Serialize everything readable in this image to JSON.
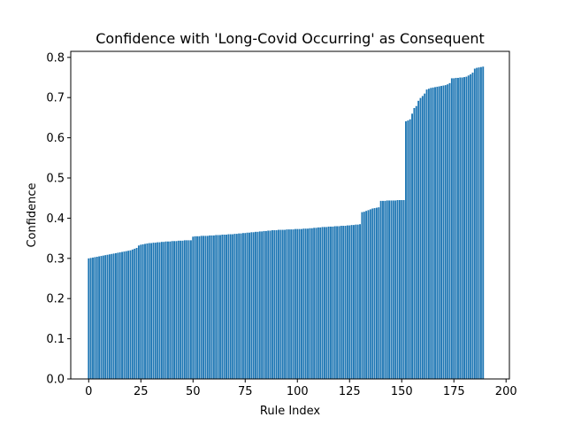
{
  "chart_data": {
    "type": "bar",
    "title": "Confidence with 'Long-Covid Occurring' as Consequent",
    "xlabel": "Rule Index",
    "ylabel": "Confidence",
    "xlim": [
      -8.6,
      201.6
    ],
    "ylim": [
      0,
      0.815
    ],
    "xticks": [
      0,
      25,
      50,
      75,
      100,
      125,
      150,
      175,
      200
    ],
    "yticks": [
      0.0,
      0.1,
      0.2,
      0.3,
      0.4,
      0.5,
      0.6,
      0.7,
      0.8
    ],
    "xtick_labels": [
      "0",
      "25",
      "50",
      "75",
      "100",
      "125",
      "150",
      "175",
      "200"
    ],
    "ytick_labels": [
      "0.0",
      "0.1",
      "0.2",
      "0.3",
      "0.4",
      "0.5",
      "0.6",
      "0.7",
      "0.8"
    ],
    "grid": false,
    "legend": "none",
    "bar_color": "#1f77b4",
    "values": [
      0.3,
      0.301,
      0.302,
      0.303,
      0.304,
      0.305,
      0.306,
      0.307,
      0.308,
      0.309,
      0.31,
      0.311,
      0.312,
      0.313,
      0.314,
      0.315,
      0.316,
      0.317,
      0.318,
      0.319,
      0.32,
      0.322,
      0.324,
      0.326,
      0.332,
      0.334,
      0.335,
      0.336,
      0.337,
      0.338,
      0.338,
      0.339,
      0.339,
      0.34,
      0.34,
      0.341,
      0.341,
      0.342,
      0.342,
      0.342,
      0.343,
      0.343,
      0.343,
      0.344,
      0.344,
      0.344,
      0.345,
      0.345,
      0.345,
      0.345,
      0.354,
      0.355,
      0.355,
      0.355,
      0.356,
      0.356,
      0.356,
      0.356,
      0.357,
      0.357,
      0.357,
      0.358,
      0.358,
      0.358,
      0.359,
      0.359,
      0.359,
      0.36,
      0.36,
      0.36,
      0.361,
      0.361,
      0.362,
      0.362,
      0.363,
      0.363,
      0.364,
      0.364,
      0.365,
      0.365,
      0.366,
      0.366,
      0.367,
      0.367,
      0.368,
      0.368,
      0.369,
      0.369,
      0.37,
      0.37,
      0.37,
      0.371,
      0.371,
      0.371,
      0.371,
      0.372,
      0.372,
      0.372,
      0.372,
      0.373,
      0.373,
      0.373,
      0.373,
      0.374,
      0.374,
      0.374,
      0.375,
      0.375,
      0.376,
      0.376,
      0.377,
      0.377,
      0.378,
      0.378,
      0.378,
      0.379,
      0.379,
      0.379,
      0.38,
      0.38,
      0.38,
      0.381,
      0.381,
      0.381,
      0.382,
      0.382,
      0.383,
      0.383,
      0.384,
      0.384,
      0.385,
      0.415,
      0.416,
      0.418,
      0.42,
      0.422,
      0.424,
      0.425,
      0.426,
      0.427,
      0.443,
      0.443,
      0.443,
      0.444,
      0.444,
      0.444,
      0.444,
      0.444,
      0.445,
      0.445,
      0.445,
      0.445,
      0.641,
      0.643,
      0.646,
      0.66,
      0.674,
      0.679,
      0.692,
      0.699,
      0.704,
      0.71,
      0.72,
      0.722,
      0.724,
      0.725,
      0.726,
      0.727,
      0.728,
      0.729,
      0.73,
      0.731,
      0.733,
      0.736,
      0.748,
      0.748,
      0.749,
      0.749,
      0.75,
      0.75,
      0.751,
      0.752,
      0.755,
      0.758,
      0.762,
      0.772,
      0.774,
      0.775,
      0.776,
      0.777
    ]
  }
}
